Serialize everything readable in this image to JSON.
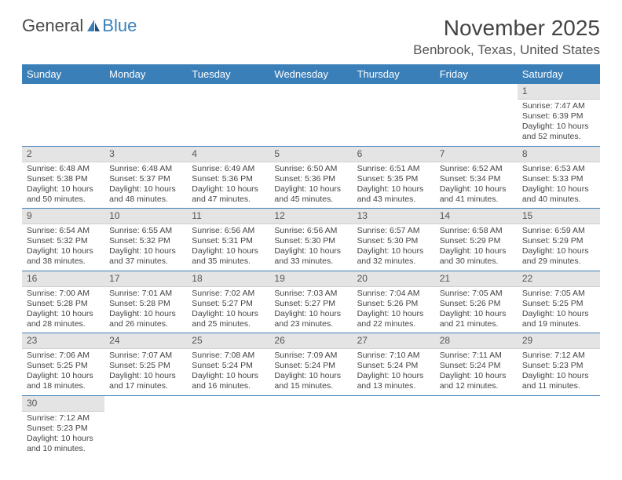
{
  "logo": {
    "general": "General",
    "blue": "Blue"
  },
  "title": "November 2025",
  "location": "Benbrook, Texas, United States",
  "day_headers": [
    "Sunday",
    "Monday",
    "Tuesday",
    "Wednesday",
    "Thursday",
    "Friday",
    "Saturday"
  ],
  "colors": {
    "header_bg": "#3b7fb8",
    "header_text": "#ffffff",
    "daynum_bg": "#e4e4e4",
    "row_border": "#3b7fb8",
    "text": "#444444"
  },
  "weeks": [
    [
      null,
      null,
      null,
      null,
      null,
      null,
      {
        "n": "1",
        "sunrise": "Sunrise: 7:47 AM",
        "sunset": "Sunset: 6:39 PM",
        "daylight": "Daylight: 10 hours and 52 minutes."
      }
    ],
    [
      {
        "n": "2",
        "sunrise": "Sunrise: 6:48 AM",
        "sunset": "Sunset: 5:38 PM",
        "daylight": "Daylight: 10 hours and 50 minutes."
      },
      {
        "n": "3",
        "sunrise": "Sunrise: 6:48 AM",
        "sunset": "Sunset: 5:37 PM",
        "daylight": "Daylight: 10 hours and 48 minutes."
      },
      {
        "n": "4",
        "sunrise": "Sunrise: 6:49 AM",
        "sunset": "Sunset: 5:36 PM",
        "daylight": "Daylight: 10 hours and 47 minutes."
      },
      {
        "n": "5",
        "sunrise": "Sunrise: 6:50 AM",
        "sunset": "Sunset: 5:36 PM",
        "daylight": "Daylight: 10 hours and 45 minutes."
      },
      {
        "n": "6",
        "sunrise": "Sunrise: 6:51 AM",
        "sunset": "Sunset: 5:35 PM",
        "daylight": "Daylight: 10 hours and 43 minutes."
      },
      {
        "n": "7",
        "sunrise": "Sunrise: 6:52 AM",
        "sunset": "Sunset: 5:34 PM",
        "daylight": "Daylight: 10 hours and 41 minutes."
      },
      {
        "n": "8",
        "sunrise": "Sunrise: 6:53 AM",
        "sunset": "Sunset: 5:33 PM",
        "daylight": "Daylight: 10 hours and 40 minutes."
      }
    ],
    [
      {
        "n": "9",
        "sunrise": "Sunrise: 6:54 AM",
        "sunset": "Sunset: 5:32 PM",
        "daylight": "Daylight: 10 hours and 38 minutes."
      },
      {
        "n": "10",
        "sunrise": "Sunrise: 6:55 AM",
        "sunset": "Sunset: 5:32 PM",
        "daylight": "Daylight: 10 hours and 37 minutes."
      },
      {
        "n": "11",
        "sunrise": "Sunrise: 6:56 AM",
        "sunset": "Sunset: 5:31 PM",
        "daylight": "Daylight: 10 hours and 35 minutes."
      },
      {
        "n": "12",
        "sunrise": "Sunrise: 6:56 AM",
        "sunset": "Sunset: 5:30 PM",
        "daylight": "Daylight: 10 hours and 33 minutes."
      },
      {
        "n": "13",
        "sunrise": "Sunrise: 6:57 AM",
        "sunset": "Sunset: 5:30 PM",
        "daylight": "Daylight: 10 hours and 32 minutes."
      },
      {
        "n": "14",
        "sunrise": "Sunrise: 6:58 AM",
        "sunset": "Sunset: 5:29 PM",
        "daylight": "Daylight: 10 hours and 30 minutes."
      },
      {
        "n": "15",
        "sunrise": "Sunrise: 6:59 AM",
        "sunset": "Sunset: 5:29 PM",
        "daylight": "Daylight: 10 hours and 29 minutes."
      }
    ],
    [
      {
        "n": "16",
        "sunrise": "Sunrise: 7:00 AM",
        "sunset": "Sunset: 5:28 PM",
        "daylight": "Daylight: 10 hours and 28 minutes."
      },
      {
        "n": "17",
        "sunrise": "Sunrise: 7:01 AM",
        "sunset": "Sunset: 5:28 PM",
        "daylight": "Daylight: 10 hours and 26 minutes."
      },
      {
        "n": "18",
        "sunrise": "Sunrise: 7:02 AM",
        "sunset": "Sunset: 5:27 PM",
        "daylight": "Daylight: 10 hours and 25 minutes."
      },
      {
        "n": "19",
        "sunrise": "Sunrise: 7:03 AM",
        "sunset": "Sunset: 5:27 PM",
        "daylight": "Daylight: 10 hours and 23 minutes."
      },
      {
        "n": "20",
        "sunrise": "Sunrise: 7:04 AM",
        "sunset": "Sunset: 5:26 PM",
        "daylight": "Daylight: 10 hours and 22 minutes."
      },
      {
        "n": "21",
        "sunrise": "Sunrise: 7:05 AM",
        "sunset": "Sunset: 5:26 PM",
        "daylight": "Daylight: 10 hours and 21 minutes."
      },
      {
        "n": "22",
        "sunrise": "Sunrise: 7:05 AM",
        "sunset": "Sunset: 5:25 PM",
        "daylight": "Daylight: 10 hours and 19 minutes."
      }
    ],
    [
      {
        "n": "23",
        "sunrise": "Sunrise: 7:06 AM",
        "sunset": "Sunset: 5:25 PM",
        "daylight": "Daylight: 10 hours and 18 minutes."
      },
      {
        "n": "24",
        "sunrise": "Sunrise: 7:07 AM",
        "sunset": "Sunset: 5:25 PM",
        "daylight": "Daylight: 10 hours and 17 minutes."
      },
      {
        "n": "25",
        "sunrise": "Sunrise: 7:08 AM",
        "sunset": "Sunset: 5:24 PM",
        "daylight": "Daylight: 10 hours and 16 minutes."
      },
      {
        "n": "26",
        "sunrise": "Sunrise: 7:09 AM",
        "sunset": "Sunset: 5:24 PM",
        "daylight": "Daylight: 10 hours and 15 minutes."
      },
      {
        "n": "27",
        "sunrise": "Sunrise: 7:10 AM",
        "sunset": "Sunset: 5:24 PM",
        "daylight": "Daylight: 10 hours and 13 minutes."
      },
      {
        "n": "28",
        "sunrise": "Sunrise: 7:11 AM",
        "sunset": "Sunset: 5:24 PM",
        "daylight": "Daylight: 10 hours and 12 minutes."
      },
      {
        "n": "29",
        "sunrise": "Sunrise: 7:12 AM",
        "sunset": "Sunset: 5:23 PM",
        "daylight": "Daylight: 10 hours and 11 minutes."
      }
    ],
    [
      {
        "n": "30",
        "sunrise": "Sunrise: 7:12 AM",
        "sunset": "Sunset: 5:23 PM",
        "daylight": "Daylight: 10 hours and 10 minutes."
      },
      null,
      null,
      null,
      null,
      null,
      null
    ]
  ]
}
